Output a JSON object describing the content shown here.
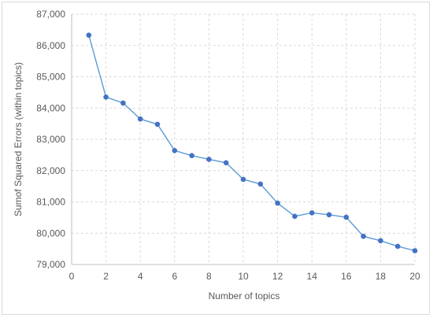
{
  "chart_data": {
    "type": "line",
    "title": "",
    "xlabel": "Number of topics",
    "ylabel": "Sumof Squared  Errors (within topics)",
    "xlim": [
      0,
      20
    ],
    "ylim": [
      79000,
      87000
    ],
    "x_ticks": [
      0,
      2,
      4,
      6,
      8,
      10,
      12,
      14,
      16,
      18,
      20
    ],
    "y_ticks": [
      79000,
      80000,
      81000,
      82000,
      83000,
      84000,
      85000,
      86000,
      87000
    ],
    "y_tick_labels": [
      "79,000",
      "80,000",
      "81,000",
      "82,000",
      "83,000",
      "84,000",
      "85,000",
      "86,000",
      "87,000"
    ],
    "grid": "dashed",
    "legend": "none",
    "series": [
      {
        "color": "#4472c4",
        "line_color": "#5b9bd5",
        "x": [
          1,
          2,
          3,
          4,
          5,
          6,
          7,
          8,
          9,
          10,
          11,
          12,
          13,
          14,
          15,
          16,
          17,
          18,
          19,
          20
        ],
        "y": [
          86330,
          84350,
          84160,
          83650,
          83480,
          82640,
          82480,
          82360,
          82250,
          81720,
          81570,
          80960,
          80540,
          80650,
          80590,
          80510,
          79900,
          79760,
          79580,
          79440
        ]
      }
    ]
  }
}
